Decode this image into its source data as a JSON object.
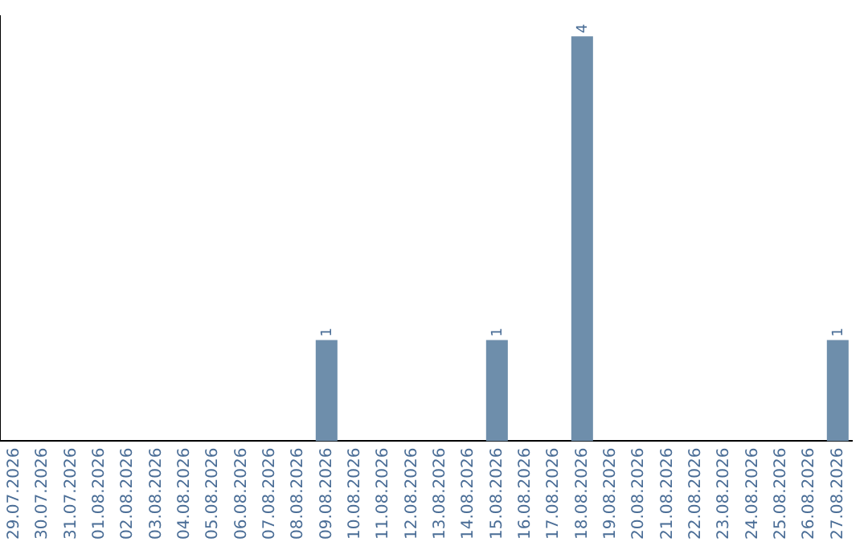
{
  "chart_data": {
    "type": "bar",
    "categories": [
      "29.07.2026",
      "30.07.2026",
      "31.07.2026",
      "01.08.2026",
      "02.08.2026",
      "03.08.2026",
      "04.08.2026",
      "05.08.2026",
      "06.08.2026",
      "07.08.2026",
      "08.08.2026",
      "09.08.2026",
      "10.08.2026",
      "11.08.2026",
      "12.08.2026",
      "13.08.2026",
      "14.08.2026",
      "15.08.2026",
      "16.08.2026",
      "17.08.2026",
      "18.08.2026",
      "19.08.2026",
      "20.08.2026",
      "21.08.2026",
      "22.08.2026",
      "23.08.2026",
      "24.08.2026",
      "25.08.2026",
      "26.08.2026",
      "27.08.2026"
    ],
    "values": [
      0,
      0,
      0,
      0,
      0,
      0,
      0,
      0,
      0,
      0,
      0,
      1,
      0,
      0,
      0,
      0,
      0,
      1,
      0,
      0,
      4,
      0,
      0,
      0,
      0,
      0,
      0,
      0,
      0,
      1
    ],
    "value_labels": [
      null,
      null,
      null,
      null,
      null,
      null,
      null,
      null,
      null,
      null,
      null,
      "1",
      null,
      null,
      null,
      null,
      null,
      "1",
      null,
      null,
      "4",
      null,
      null,
      null,
      null,
      null,
      null,
      null,
      null,
      "1"
    ],
    "color": "#6e8eab",
    "ylim": [
      0,
      4.2
    ],
    "tick_labels": "x",
    "grid": false,
    "legend": false
  }
}
